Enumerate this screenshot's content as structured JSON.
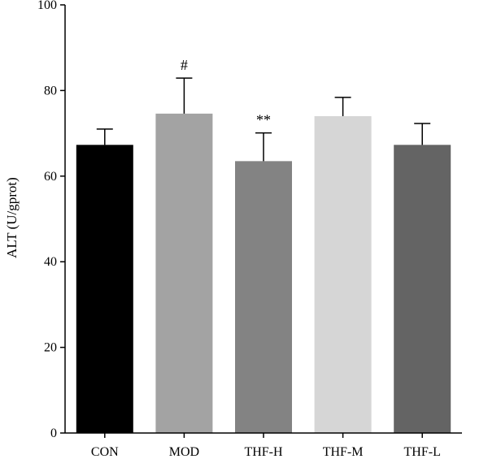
{
  "chart_data": {
    "type": "bar",
    "title": "",
    "xlabel": "",
    "ylabel": "ALT (U/gprot)",
    "ylim": [
      0,
      100
    ],
    "yticks": [
      0,
      20,
      40,
      60,
      80,
      100
    ],
    "grid": false,
    "legend": "none",
    "categories": [
      "CON",
      "MOD",
      "THF-H",
      "THF-M",
      "THF-L"
    ],
    "values": [
      67.3,
      74.6,
      63.5,
      74.0,
      67.3
    ],
    "errors": [
      3.7,
      8.3,
      6.6,
      4.4,
      5.0
    ],
    "annotations": [
      "",
      "#",
      "**",
      "",
      ""
    ],
    "colors": [
      "#000000",
      "#a3a3a3",
      "#838383",
      "#d6d6d6",
      "#646464"
    ]
  }
}
